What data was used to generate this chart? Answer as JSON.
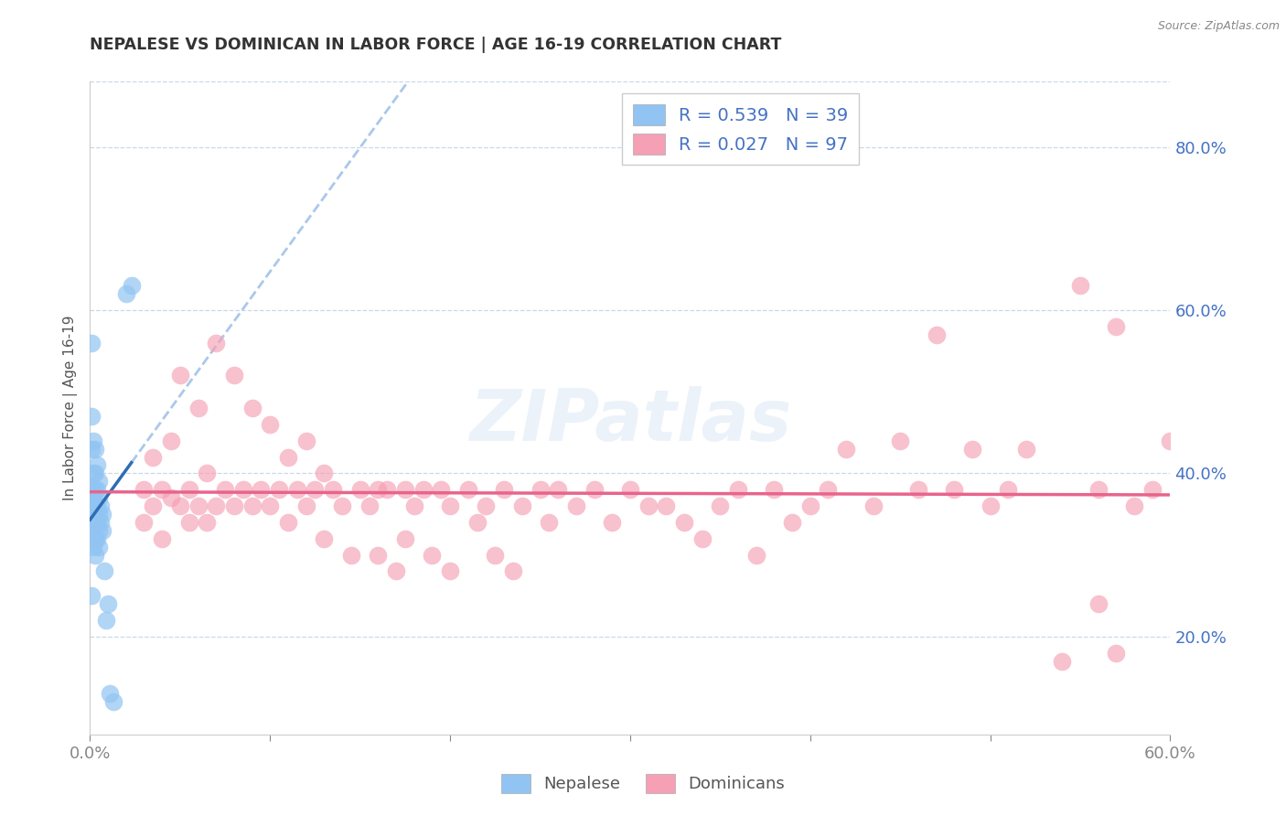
{
  "title": "NEPALESE VS DOMINICAN IN LABOR FORCE | AGE 16-19 CORRELATION CHART",
  "source": "Source: ZipAtlas.com",
  "ylabel": "In Labor Force | Age 16-19",
  "xlim": [
    0.0,
    0.6
  ],
  "ylim": [
    0.08,
    0.88
  ],
  "right_yticks": [
    0.2,
    0.4,
    0.6,
    0.8
  ],
  "right_yticklabels": [
    "20.0%",
    "40.0%",
    "60.0%",
    "80.0%"
  ],
  "xticks": [
    0.0,
    0.1,
    0.2,
    0.3,
    0.4,
    0.5,
    0.6
  ],
  "xticklabels": [
    "0.0%",
    "",
    "",
    "",
    "",
    "",
    "60.0%"
  ],
  "nepalese_color": "#91c4f2",
  "dominican_color": "#f5a0b5",
  "nepalese_line_color": "#2e6db4",
  "dominican_line_color": "#e8648c",
  "dashed_line_color": "#aac8ea",
  "nepalese_x": [
    0.001,
    0.001,
    0.001,
    0.001,
    0.001,
    0.002,
    0.002,
    0.002,
    0.002,
    0.002,
    0.002,
    0.003,
    0.003,
    0.003,
    0.003,
    0.003,
    0.003,
    0.003,
    0.004,
    0.004,
    0.004,
    0.004,
    0.004,
    0.005,
    0.005,
    0.005,
    0.005,
    0.005,
    0.006,
    0.006,
    0.007,
    0.007,
    0.008,
    0.009,
    0.01,
    0.011,
    0.013,
    0.02,
    0.023
  ],
  "nepalese_y": [
    0.56,
    0.47,
    0.43,
    0.38,
    0.25,
    0.44,
    0.4,
    0.37,
    0.35,
    0.33,
    0.31,
    0.43,
    0.4,
    0.38,
    0.36,
    0.34,
    0.32,
    0.3,
    0.41,
    0.38,
    0.36,
    0.34,
    0.32,
    0.39,
    0.37,
    0.35,
    0.33,
    0.31,
    0.36,
    0.34,
    0.35,
    0.33,
    0.28,
    0.22,
    0.24,
    0.13,
    0.12,
    0.62,
    0.63
  ],
  "dominican_x": [
    0.03,
    0.03,
    0.035,
    0.035,
    0.04,
    0.04,
    0.045,
    0.045,
    0.05,
    0.05,
    0.055,
    0.055,
    0.06,
    0.06,
    0.065,
    0.065,
    0.07,
    0.07,
    0.075,
    0.08,
    0.08,
    0.085,
    0.09,
    0.09,
    0.095,
    0.1,
    0.1,
    0.105,
    0.11,
    0.11,
    0.115,
    0.12,
    0.12,
    0.125,
    0.13,
    0.13,
    0.135,
    0.14,
    0.145,
    0.15,
    0.155,
    0.16,
    0.16,
    0.165,
    0.17,
    0.175,
    0.175,
    0.18,
    0.185,
    0.19,
    0.195,
    0.2,
    0.2,
    0.21,
    0.215,
    0.22,
    0.225,
    0.23,
    0.235,
    0.24,
    0.25,
    0.255,
    0.26,
    0.27,
    0.28,
    0.29,
    0.3,
    0.31,
    0.32,
    0.33,
    0.34,
    0.35,
    0.36,
    0.37,
    0.38,
    0.39,
    0.4,
    0.41,
    0.42,
    0.435,
    0.45,
    0.46,
    0.47,
    0.48,
    0.49,
    0.5,
    0.51,
    0.52,
    0.54,
    0.55,
    0.56,
    0.57,
    0.58,
    0.59,
    0.6,
    0.56,
    0.57
  ],
  "dominican_y": [
    0.38,
    0.34,
    0.42,
    0.36,
    0.38,
    0.32,
    0.44,
    0.37,
    0.52,
    0.36,
    0.38,
    0.34,
    0.48,
    0.36,
    0.4,
    0.34,
    0.56,
    0.36,
    0.38,
    0.52,
    0.36,
    0.38,
    0.48,
    0.36,
    0.38,
    0.46,
    0.36,
    0.38,
    0.42,
    0.34,
    0.38,
    0.44,
    0.36,
    0.38,
    0.4,
    0.32,
    0.38,
    0.36,
    0.3,
    0.38,
    0.36,
    0.38,
    0.3,
    0.38,
    0.28,
    0.38,
    0.32,
    0.36,
    0.38,
    0.3,
    0.38,
    0.36,
    0.28,
    0.38,
    0.34,
    0.36,
    0.3,
    0.38,
    0.28,
    0.36,
    0.38,
    0.34,
    0.38,
    0.36,
    0.38,
    0.34,
    0.38,
    0.36,
    0.36,
    0.34,
    0.32,
    0.36,
    0.38,
    0.3,
    0.38,
    0.34,
    0.36,
    0.38,
    0.43,
    0.36,
    0.44,
    0.38,
    0.57,
    0.38,
    0.43,
    0.36,
    0.38,
    0.43,
    0.17,
    0.63,
    0.38,
    0.58,
    0.36,
    0.38,
    0.44,
    0.24,
    0.18
  ]
}
